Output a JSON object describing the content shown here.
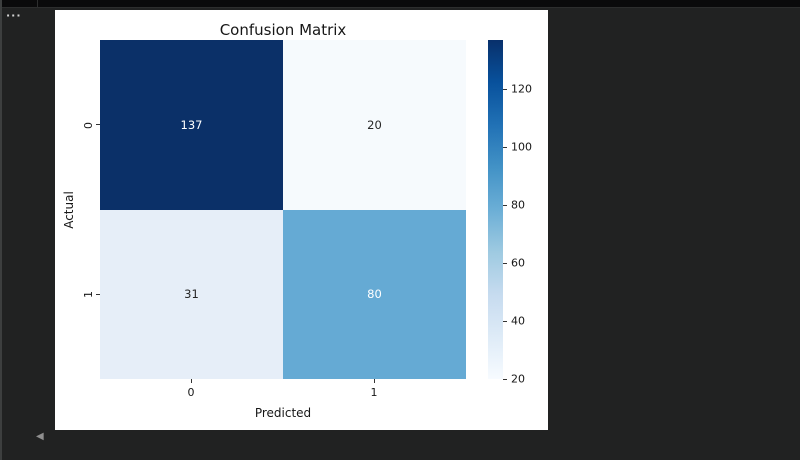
{
  "chrome": {
    "more_button_glyph": "···",
    "nav_back_glyph": "◀"
  },
  "colors": {
    "canvas_bg": "#212222",
    "topbar_bg": "#0a0a0b",
    "chrome_line": "#2d2e2e",
    "left_strip": "#3d3f3f",
    "figure_bg": "#ffffff",
    "axis_text": "#171717",
    "nav_triangle": "#8f8f8f"
  },
  "chart_data": {
    "type": "heatmap",
    "title": "Confusion Matrix",
    "xlabel": "Predicted",
    "ylabel": "Actual",
    "x_tick_labels": [
      "0",
      "1"
    ],
    "y_tick_labels": [
      "0",
      "1"
    ],
    "rows": [
      [
        137,
        20
      ],
      [
        31,
        80
      ]
    ],
    "vmin": 20,
    "vmax": 137,
    "colormap": "Blues",
    "colorbar_ticks": [
      20,
      40,
      60,
      80,
      100,
      120
    ],
    "cell_colors": [
      [
        "#0b3068",
        "#f6fafd"
      ],
      [
        "#e6eef8",
        "#65aad4"
      ]
    ],
    "cell_text_colors": [
      [
        "#ffffff",
        "#262626"
      ],
      [
        "#262626",
        "#ffffff"
      ]
    ],
    "colorbar_gradient_top_to_bottom": [
      "#08306b",
      "#08519c",
      "#2171b5",
      "#4292c6",
      "#6baed6",
      "#9ecae1",
      "#c6dbef",
      "#deebf7",
      "#f7fbff"
    ],
    "legend": "colorbar-right",
    "grid": false
  }
}
